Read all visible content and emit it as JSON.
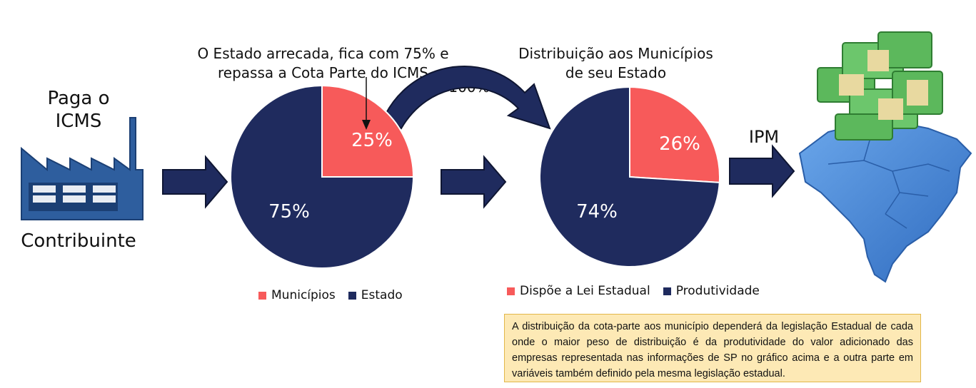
{
  "contributor": {
    "top_label": "Paga o ICMS",
    "bottom_label": "Contribuinte",
    "icon": "factory-icon"
  },
  "pie_state": {
    "caption": "O Estado arrecada, fica com 75% e repassa a Cota Parte do ICMS",
    "chart_data": {
      "type": "pie",
      "slices": [
        {
          "name": "Municípios",
          "value": 25,
          "label": "25%",
          "color": "#f75a5a"
        },
        {
          "name": "Estado",
          "value": 75,
          "label": "75%",
          "color": "#1f2b5e"
        }
      ],
      "legend_placement": "bottom"
    }
  },
  "transfer_label": "100%",
  "pie_municipal": {
    "caption": "Distribuição aos Municípios de seu Estado",
    "chart_data": {
      "type": "pie",
      "slices": [
        {
          "name": "Dispõe a Lei Estadual",
          "value": 26,
          "label": "26%",
          "color": "#f75a5a"
        },
        {
          "name": "Produtividade",
          "value": 74,
          "label": "74%",
          "color": "#1f2b5e"
        }
      ],
      "legend_placement": "bottom"
    }
  },
  "ipm_label": "IPM",
  "map_icon": "brazil-map-money-icon",
  "note": "A distribuição da cota-parte aos município dependerá da legislação Estadual de cada onde o maior peso de distribuição é da produtividade do valor adicionado das empresas representada nas informações de SP no gráfico acima e a outra parte em variáveis também definido pela mesma legislação estadual.",
  "colors": {
    "navy": "#1f2b5e",
    "red": "#f75a5a",
    "factory": "#2e5e9e",
    "map": "#4a8ad6",
    "money": "#5cb85c",
    "note_bg": "#fde9b5"
  }
}
